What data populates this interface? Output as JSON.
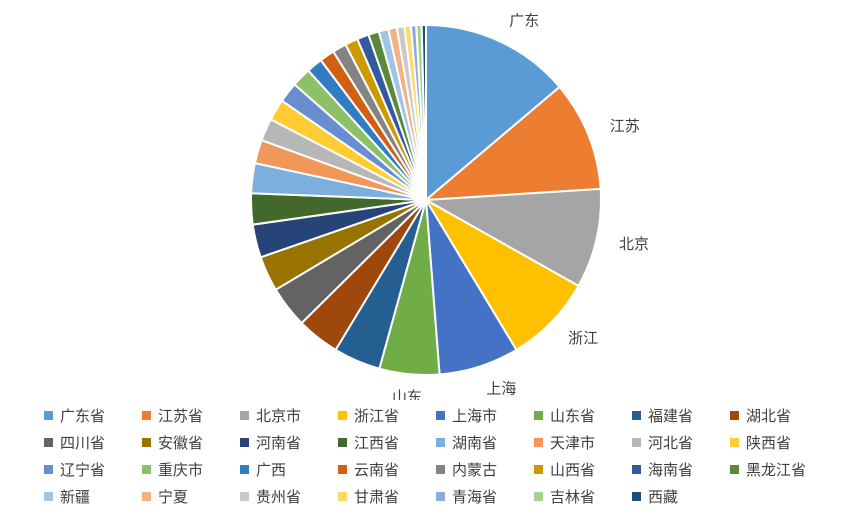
{
  "chart_data": {
    "type": "pie",
    "title": "",
    "legend_position": "bottom",
    "slices": [
      {
        "legend": "广东省",
        "label": "广东",
        "value": 14.0,
        "color": "#5B9BD5"
      },
      {
        "legend": "江苏省",
        "label": "江苏",
        "value": 10.3,
        "color": "#ED7D31"
      },
      {
        "legend": "北京市",
        "label": "北京",
        "value": 9.3,
        "color": "#A5A5A5"
      },
      {
        "legend": "浙江省",
        "label": "浙江",
        "value": 8.3,
        "color": "#FFC000"
      },
      {
        "legend": "上海市",
        "label": "上海",
        "value": 7.5,
        "color": "#4472C4"
      },
      {
        "legend": "山东省",
        "label": "山东",
        "value": 5.6,
        "color": "#70AD47"
      },
      {
        "legend": "福建省",
        "label": "",
        "value": 4.4,
        "color": "#255E91"
      },
      {
        "legend": "湖北省",
        "label": "",
        "value": 4.0,
        "color": "#9E480E"
      },
      {
        "legend": "四川省",
        "label": "",
        "value": 3.9,
        "color": "#636363"
      },
      {
        "legend": "安徽省",
        "label": "",
        "value": 3.3,
        "color": "#997300"
      },
      {
        "legend": "河南省",
        "label": "",
        "value": 3.1,
        "color": "#264478"
      },
      {
        "legend": "江西省",
        "label": "",
        "value": 2.9,
        "color": "#43682B"
      },
      {
        "legend": "湖南省",
        "label": "",
        "value": 2.8,
        "color": "#7CAFDD"
      },
      {
        "legend": "天津市",
        "label": "",
        "value": 2.2,
        "color": "#F1975A"
      },
      {
        "legend": "河北省",
        "label": "",
        "value": 2.1,
        "color": "#B7B7B7"
      },
      {
        "legend": "陕西省",
        "label": "",
        "value": 2.0,
        "color": "#FFCD33"
      },
      {
        "legend": "辽宁省",
        "label": "",
        "value": 1.9,
        "color": "#698ED0"
      },
      {
        "legend": "重庆市",
        "label": "",
        "value": 1.8,
        "color": "#8CC168"
      },
      {
        "legend": "广西",
        "label": "",
        "value": 1.5,
        "color": "#327DC2"
      },
      {
        "legend": "云南省",
        "label": "",
        "value": 1.4,
        "color": "#D26012"
      },
      {
        "legend": "内蒙古",
        "label": "",
        "value": 1.3,
        "color": "#848484"
      },
      {
        "legend": "山西省",
        "label": "",
        "value": 1.2,
        "color": "#CC9A00"
      },
      {
        "legend": "海南省",
        "label": "",
        "value": 1.1,
        "color": "#335AA1"
      },
      {
        "legend": "黑龙江省",
        "label": "",
        "value": 1.0,
        "color": "#5A8A39"
      },
      {
        "legend": "新疆",
        "label": "",
        "value": 0.9,
        "color": "#A3C4E6"
      },
      {
        "legend": "宁夏",
        "label": "",
        "value": 0.8,
        "color": "#F4B183"
      },
      {
        "legend": "贵州省",
        "label": "",
        "value": 0.7,
        "color": "#C9C9C9"
      },
      {
        "legend": "甘肃省",
        "label": "",
        "value": 0.6,
        "color": "#FFD966"
      },
      {
        "legend": "青海省",
        "label": "",
        "value": 0.5,
        "color": "#8FAADC"
      },
      {
        "legend": "吉林省",
        "label": "",
        "value": 0.5,
        "color": "#A9D18E"
      },
      {
        "legend": "西藏",
        "label": "",
        "value": 0.4,
        "color": "#1F4E79"
      }
    ]
  }
}
